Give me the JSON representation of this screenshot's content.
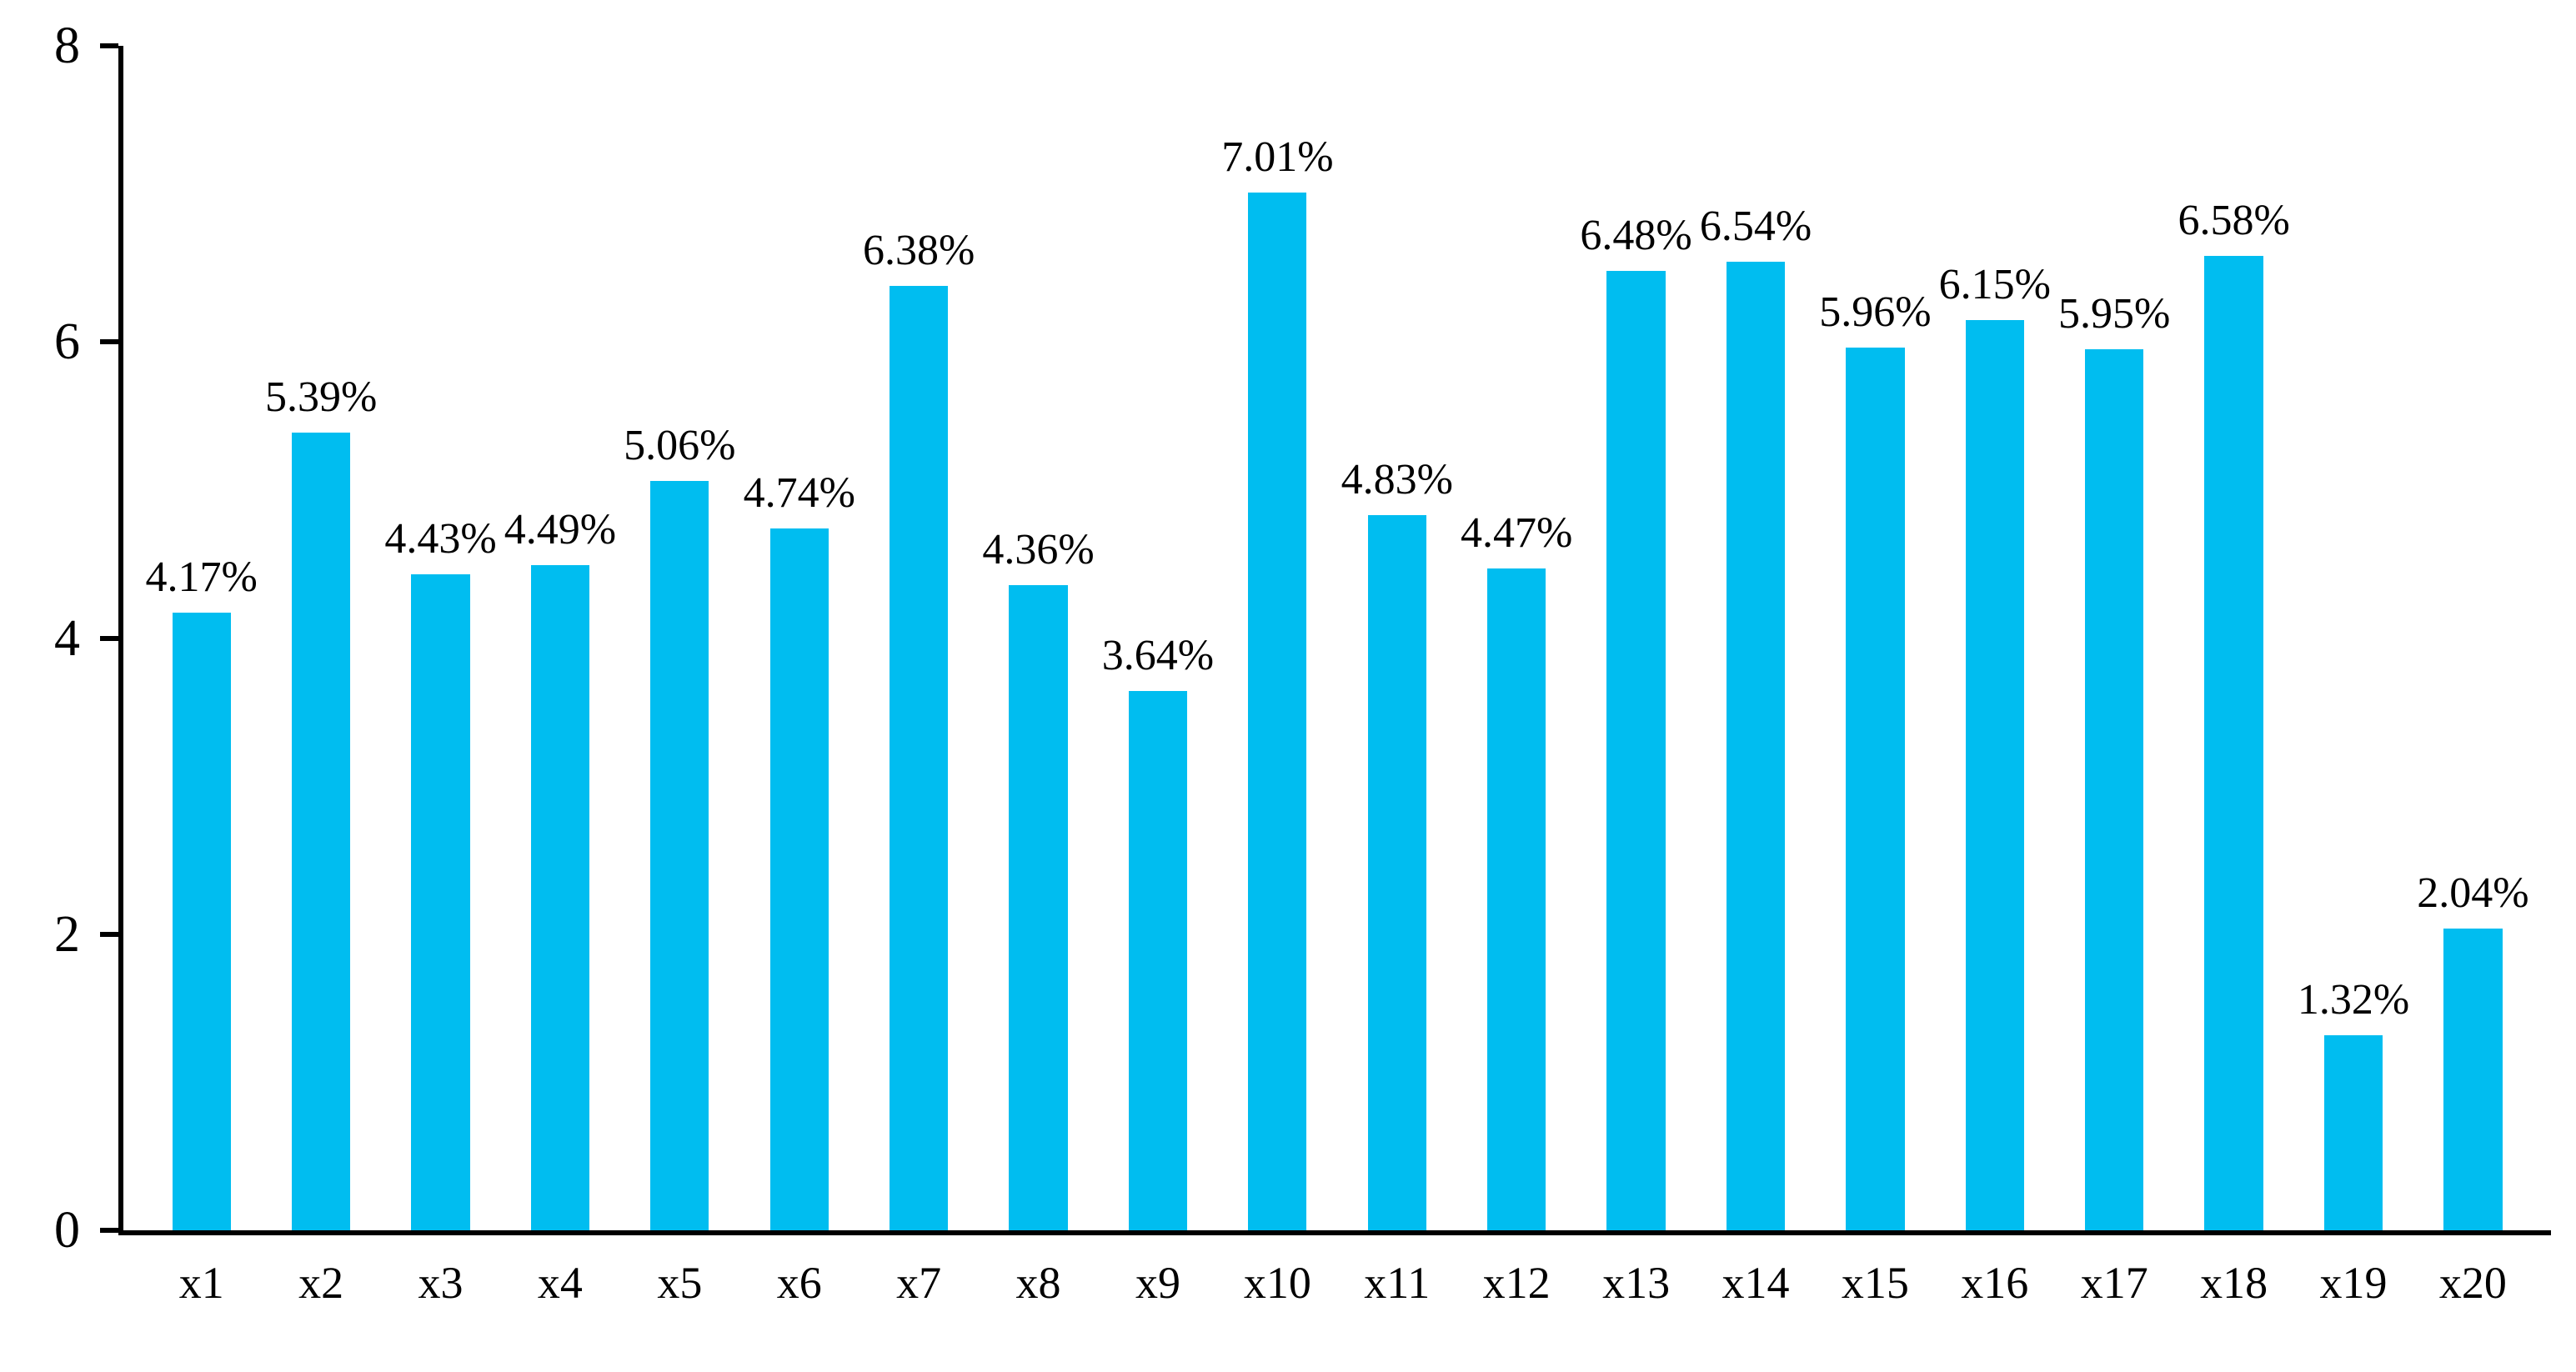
{
  "chart_data": {
    "type": "bar",
    "title": "",
    "xlabel": "",
    "ylabel": "",
    "categories": [
      "x1",
      "x2",
      "x3",
      "x4",
      "x5",
      "x6",
      "x7",
      "x8",
      "x9",
      "x10",
      "x11",
      "x12",
      "x13",
      "x14",
      "x15",
      "x16",
      "x17",
      "x18",
      "x19",
      "x20"
    ],
    "values": [
      4.17,
      5.39,
      4.43,
      4.49,
      5.06,
      4.74,
      6.38,
      4.36,
      3.64,
      7.01,
      4.83,
      4.47,
      6.48,
      6.54,
      5.96,
      6.15,
      5.95,
      6.58,
      1.32,
      2.04
    ],
    "data_labels": [
      "4.17%",
      "5.39%",
      "4.43%",
      "4.49%",
      "5.06%",
      "4.74%",
      "6.38%",
      "4.36%",
      "3.64%",
      "7.01%",
      "4.83%",
      "4.47%",
      "6.48%",
      "6.54%",
      "5.96%",
      "6.15%",
      "5.95%",
      "6.58%",
      "1.32%",
      "2.04%"
    ],
    "ylim": [
      0,
      8
    ],
    "yticks": [
      0,
      2,
      4,
      6,
      8
    ],
    "grid": false,
    "legend_position": "none",
    "bar_color": "#00BDF0",
    "axis_color": "#000000",
    "text_color": "#000000"
  }
}
